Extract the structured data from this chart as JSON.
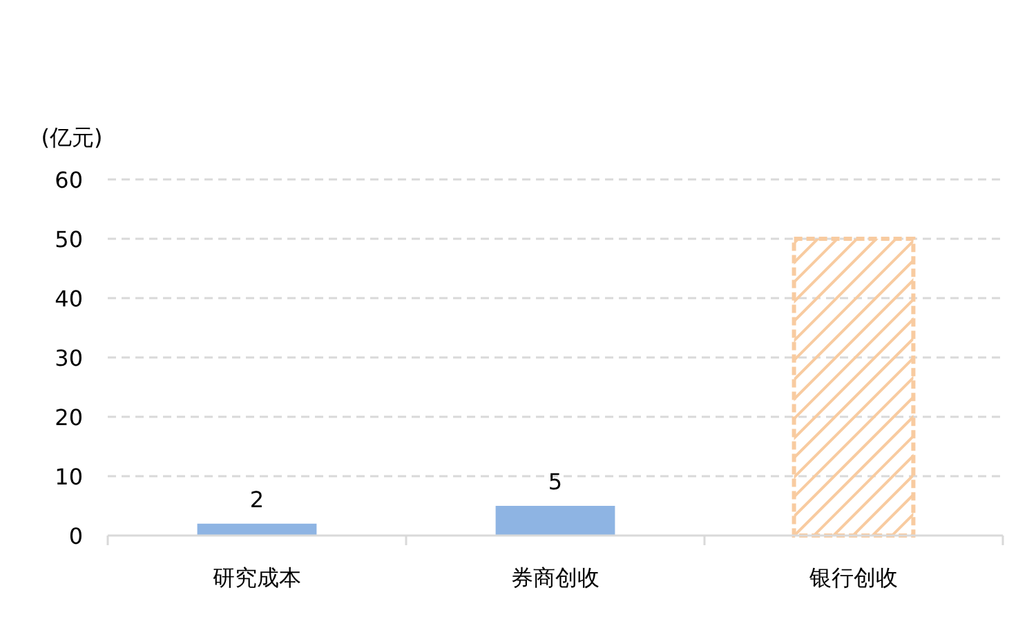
{
  "chart_data": {
    "type": "bar",
    "ylabel": "(亿元)",
    "categories": [
      "研究成本",
      "券商创收",
      "银行创收"
    ],
    "values": [
      2,
      5,
      50
    ],
    "colors": [
      "#8eb4e3",
      "#8eb4e3",
      "#f8cba0"
    ],
    "value_labels": [
      "2",
      "5",
      null
    ],
    "ylim": [
      0,
      60
    ],
    "yticks": [
      0,
      10,
      20,
      30,
      40,
      50,
      60
    ],
    "grid": "y"
  }
}
